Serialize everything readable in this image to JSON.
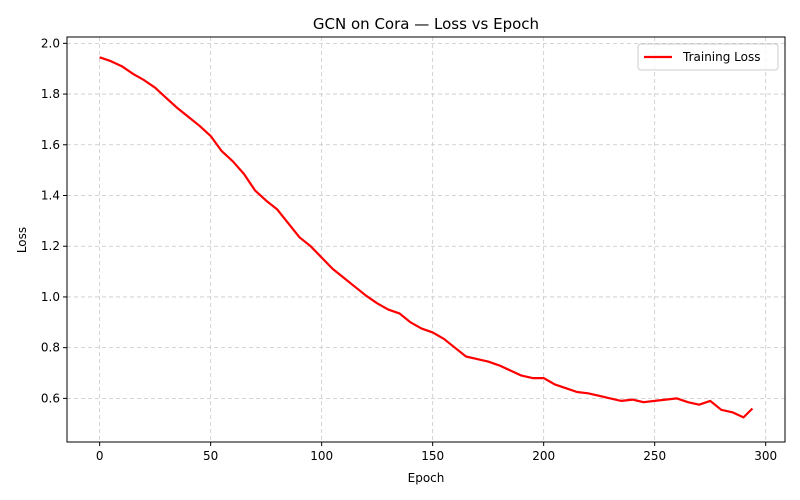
{
  "chart_data": {
    "type": "line",
    "title": "GCN on Cora — Loss vs Epoch",
    "xlabel": "Epoch",
    "ylabel": "Loss",
    "xlim": [
      -14.7,
      308.7
    ],
    "ylim": [
      0.428,
      2.025
    ],
    "xticks": [
      0,
      50,
      100,
      150,
      200,
      250,
      300
    ],
    "yticks": [
      0.6,
      0.8,
      1.0,
      1.2,
      1.4,
      1.6,
      1.8,
      2.0
    ],
    "xtick_labels": [
      "0",
      "50",
      "100",
      "150",
      "200",
      "250",
      "300"
    ],
    "ytick_labels": [
      "0.6",
      "0.8",
      "1.0",
      "1.2",
      "1.4",
      "1.6",
      "1.8",
      "2.0"
    ],
    "grid": true,
    "legend_position": "top-right",
    "series": [
      {
        "name": "Training Loss",
        "color": "#ff0000",
        "x": [
          0,
          5,
          10,
          15,
          20,
          25,
          30,
          35,
          40,
          45,
          50,
          55,
          60,
          65,
          70,
          75,
          80,
          85,
          90,
          95,
          100,
          105,
          110,
          115,
          120,
          125,
          130,
          135,
          140,
          145,
          150,
          155,
          160,
          165,
          170,
          175,
          180,
          185,
          190,
          195,
          200,
          205,
          210,
          215,
          220,
          225,
          230,
          235,
          240,
          245,
          250,
          255,
          260,
          265,
          270,
          275,
          280,
          285,
          290,
          294
        ],
        "y": [
          1.945,
          1.93,
          1.91,
          1.88,
          1.855,
          1.825,
          1.785,
          1.745,
          1.71,
          1.675,
          1.635,
          1.575,
          1.535,
          1.485,
          1.42,
          1.38,
          1.345,
          1.29,
          1.235,
          1.2,
          1.155,
          1.11,
          1.075,
          1.04,
          1.005,
          0.975,
          0.95,
          0.935,
          0.9,
          0.875,
          0.86,
          0.835,
          0.8,
          0.765,
          0.755,
          0.745,
          0.73,
          0.71,
          0.69,
          0.68,
          0.68,
          0.655,
          0.64,
          0.625,
          0.62,
          0.61,
          0.6,
          0.59,
          0.595,
          0.585,
          0.59,
          0.595,
          0.6,
          0.585,
          0.575,
          0.59,
          0.555,
          0.545,
          0.525,
          0.56
        ]
      }
    ]
  }
}
